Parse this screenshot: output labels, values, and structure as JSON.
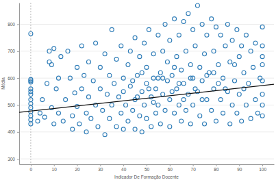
{
  "chart_data": {
    "type": "scatter",
    "x_label": "Indicador De Formação Docente",
    "y_label": "Média",
    "xlim": [
      -5,
      105
    ],
    "ylim": [
      280,
      880
    ],
    "xticks": [
      0,
      10,
      20,
      30,
      40,
      50,
      60,
      70,
      80,
      90,
      100
    ],
    "yticks": [
      300,
      400,
      500,
      600,
      700,
      800
    ],
    "grid": true,
    "color": "#2f7db8",
    "marker": "circle-open",
    "x": [
      0,
      0,
      0,
      0,
      0,
      0,
      0,
      0,
      0,
      0,
      0,
      0,
      0,
      0,
      3,
      4,
      5,
      6,
      7,
      8,
      8,
      9,
      9,
      10,
      10,
      11,
      12,
      12,
      13,
      14,
      15,
      16,
      17,
      18,
      18,
      19,
      20,
      20,
      21,
      22,
      22,
      23,
      24,
      24,
      25,
      25,
      26,
      27,
      28,
      28,
      29,
      30,
      30,
      31,
      32,
      32,
      33,
      34,
      34,
      35,
      35,
      36,
      37,
      37,
      38,
      39,
      39,
      40,
      40,
      40,
      41,
      42,
      42,
      43,
      43,
      44,
      45,
      45,
      45,
      46,
      47,
      47,
      48,
      48,
      49,
      49,
      50,
      50,
      50,
      51,
      52,
      52,
      53,
      53,
      54,
      54,
      55,
      55,
      56,
      56,
      57,
      57,
      58,
      58,
      59,
      59,
      60,
      60,
      60,
      61,
      62,
      62,
      63,
      63,
      64,
      64,
      65,
      65,
      66,
      66,
      67,
      67,
      68,
      68,
      69,
      69,
      70,
      70,
      70,
      71,
      72,
      72,
      73,
      73,
      74,
      74,
      75,
      75,
      76,
      76,
      77,
      78,
      78,
      79,
      79,
      80,
      80,
      81,
      82,
      82,
      83,
      83,
      84,
      85,
      85,
      86,
      86,
      87,
      87,
      88,
      89,
      89,
      90,
      90,
      91,
      91,
      92,
      93,
      93,
      94,
      95,
      95,
      96,
      97,
      97,
      98,
      99,
      100,
      100,
      100,
      100,
      100,
      100,
      100,
      100,
      44,
      46,
      51,
      53,
      57,
      61,
      64,
      66,
      69,
      71,
      74,
      76,
      79,
      81,
      84,
      88,
      92,
      48,
      55,
      62
    ],
    "values": [
      765,
      595,
      585,
      560,
      540,
      520,
      505,
      490,
      475,
      460,
      445,
      430,
      590,
      550,
      440,
      470,
      520,
      455,
      580,
      660,
      700,
      650,
      490,
      710,
      430,
      560,
      600,
      470,
      680,
      440,
      520,
      700,
      600,
      460,
      410,
      545,
      640,
      495,
      430,
      560,
      720,
      610,
      470,
      400,
      660,
      530,
      450,
      590,
      730,
      500,
      420,
      560,
      640,
      480,
      690,
      390,
      540,
      610,
      450,
      780,
      500,
      580,
      420,
      670,
      530,
      720,
      470,
      600,
      410,
      550,
      500,
      650,
      440,
      700,
      570,
      480,
      750,
      520,
      410,
      610,
      460,
      680,
      550,
      400,
      730,
      500,
      640,
      450,
      580,
      780,
      530,
      420,
      690,
      600,
      470,
      560,
      760,
      500,
      620,
      430,
      700,
      540,
      800,
      480,
      590,
      660,
      740,
      520,
      420,
      610,
      820,
      470,
      680,
      560,
      760,
      500,
      630,
      440,
      810,
      580,
      700,
      480,
      840,
      540,
      650,
      430,
      780,
      600,
      500,
      720,
      870,
      550,
      640,
      460,
      800,
      590,
      690,
      430,
      760,
      520,
      620,
      820,
      480,
      700,
      560,
      790,
      440,
      650,
      760,
      520,
      600,
      470,
      720,
      800,
      550,
      430,
      660,
      740,
      500,
      590,
      780,
      470,
      680,
      540,
      720,
      440,
      620,
      760,
      500,
      580,
      700,
      450,
      640,
      730,
      520,
      470,
      600,
      790,
      720,
      650,
      590,
      540,
      500,
      460,
      680,
      590,
      530,
      560,
      510,
      600,
      550,
      580,
      520,
      600,
      560,
      520,
      610,
      620,
      580,
      560,
      650,
      560,
      620,
      600,
      640
    ],
    "trendline": {
      "x": [
        -5,
        105
      ],
      "values": [
        473,
        577
      ],
      "color": "#111111"
    }
  }
}
